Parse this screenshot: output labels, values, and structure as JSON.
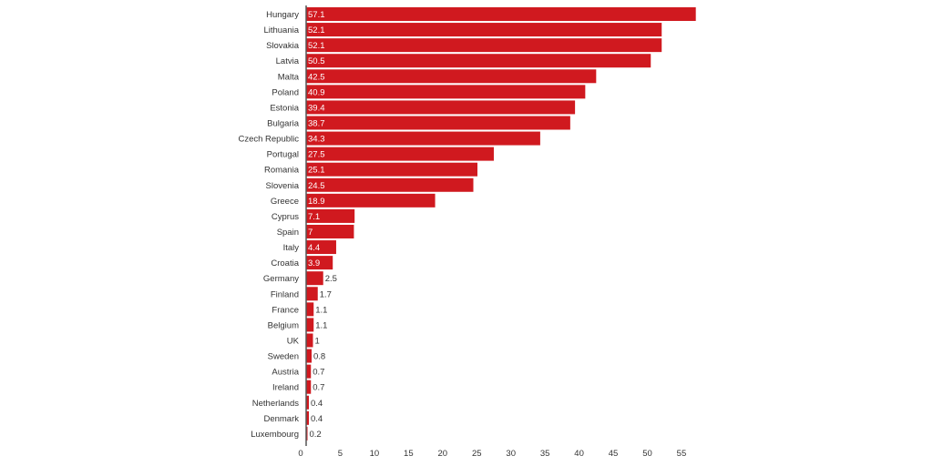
{
  "chart_data": {
    "type": "bar",
    "orientation": "horizontal",
    "categories": [
      "Hungary",
      "Lithuania",
      "Slovakia",
      "Latvia",
      "Malta",
      "Poland",
      "Estonia",
      "Bulgaria",
      "Czech Republic",
      "Portugal",
      "Romania",
      "Slovenia",
      "Greece",
      "Cyprus",
      "Spain",
      "Italy",
      "Croatia",
      "Germany",
      "Finland",
      "France",
      "Belgium",
      "UK",
      "Sweden",
      "Austria",
      "Ireland",
      "Netherlands",
      "Denmark",
      "Luxembourg"
    ],
    "values": [
      57.1,
      52.1,
      52.1,
      50.5,
      42.5,
      40.9,
      39.4,
      38.7,
      34.3,
      27.5,
      25.1,
      24.5,
      18.9,
      7.1,
      7,
      4.4,
      3.9,
      2.5,
      1.7,
      1.1,
      1.1,
      1,
      0.8,
      0.7,
      0.7,
      0.4,
      0.4,
      0.2
    ],
    "value_labels": [
      "57.1",
      "52.1",
      "52.1",
      "50.5",
      "42.5",
      "40.9",
      "39.4",
      "38.7",
      "34.3",
      "27.5",
      "25.1",
      "24.5",
      "18.9",
      "7.1",
      "7",
      "4.4",
      "3.9",
      "2.5",
      "1.7",
      "1.1",
      "1.1",
      "1",
      "0.8",
      "0.7",
      "0.7",
      "0.4",
      "0.4",
      "0.2"
    ],
    "x_ticks": [
      "0",
      "5",
      "10",
      "15",
      "20",
      "25",
      "30",
      "35",
      "40",
      "45",
      "50",
      "55"
    ],
    "xlim": [
      0,
      57.1
    ],
    "grid": false,
    "bar_color": "#d0191f",
    "text_color": "#333333",
    "axis_color": "#555555"
  }
}
